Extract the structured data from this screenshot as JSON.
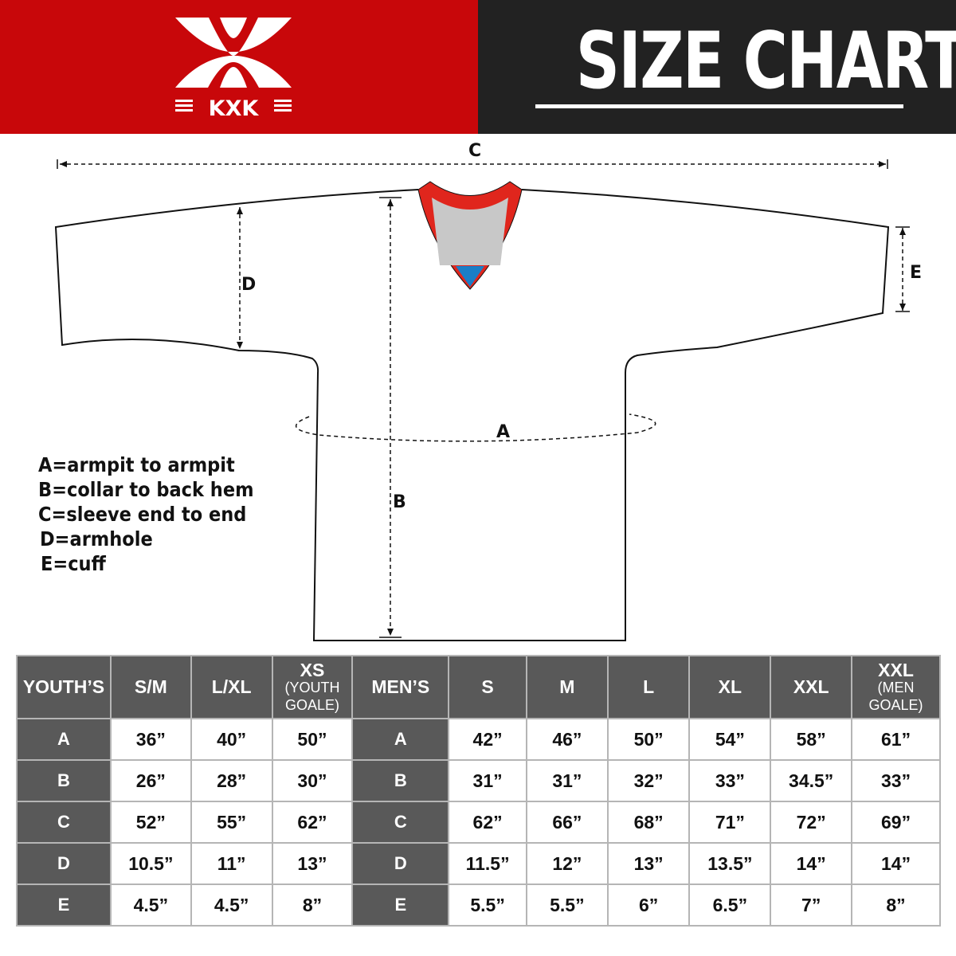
{
  "brand": {
    "logo_text": "KXK",
    "header_bg": "#c8070a"
  },
  "title": "SIZE CHART",
  "diagram_labels": {
    "a": "A",
    "b": "B",
    "c": "C",
    "d": "D",
    "e": "E"
  },
  "legend": [
    "A=armpit to armpit",
    "B=collar to back hem",
    "C=sleeve end to end",
    "D=armhole",
    "E=cuff"
  ],
  "table": {
    "youth_header": "YOUTH’S",
    "youth_sizes": [
      {
        "main": "S/M"
      },
      {
        "main": "L/XL"
      },
      {
        "main": "XS",
        "sub1": "(YOUTH",
        "sub2": "GOALE)"
      }
    ],
    "men_header": "MEN’S",
    "men_sizes": [
      {
        "main": "S"
      },
      {
        "main": "M"
      },
      {
        "main": "L"
      },
      {
        "main": "XL"
      },
      {
        "main": "XXL"
      },
      {
        "main": "XXL",
        "sub1": "(MEN",
        "sub2": "GOALE)"
      }
    ],
    "rows": [
      {
        "label": "A",
        "youth": [
          "36”",
          "40”",
          "50”"
        ],
        "men": [
          "42”",
          "46”",
          "50”",
          "54”",
          "58”",
          "61”"
        ]
      },
      {
        "label": "B",
        "youth": [
          "26”",
          "28”",
          "30”"
        ],
        "men": [
          "31”",
          "31”",
          "32”",
          "33”",
          "34.5”",
          "33”"
        ]
      },
      {
        "label": "C",
        "youth": [
          "52”",
          "55”",
          "62”"
        ],
        "men": [
          "62”",
          "66”",
          "68”",
          "71”",
          "72”",
          "69”"
        ]
      },
      {
        "label": "D",
        "youth": [
          "10.5”",
          "11”",
          "13”"
        ],
        "men": [
          "11.5”",
          "12”",
          "13”",
          "13.5”",
          "14”",
          "14”"
        ]
      },
      {
        "label": "E",
        "youth": [
          "4.5”",
          "4.5”",
          "8”"
        ],
        "men": [
          "5.5”",
          "5.5”",
          "6”",
          "6.5”",
          "7”",
          "8”"
        ]
      }
    ]
  }
}
